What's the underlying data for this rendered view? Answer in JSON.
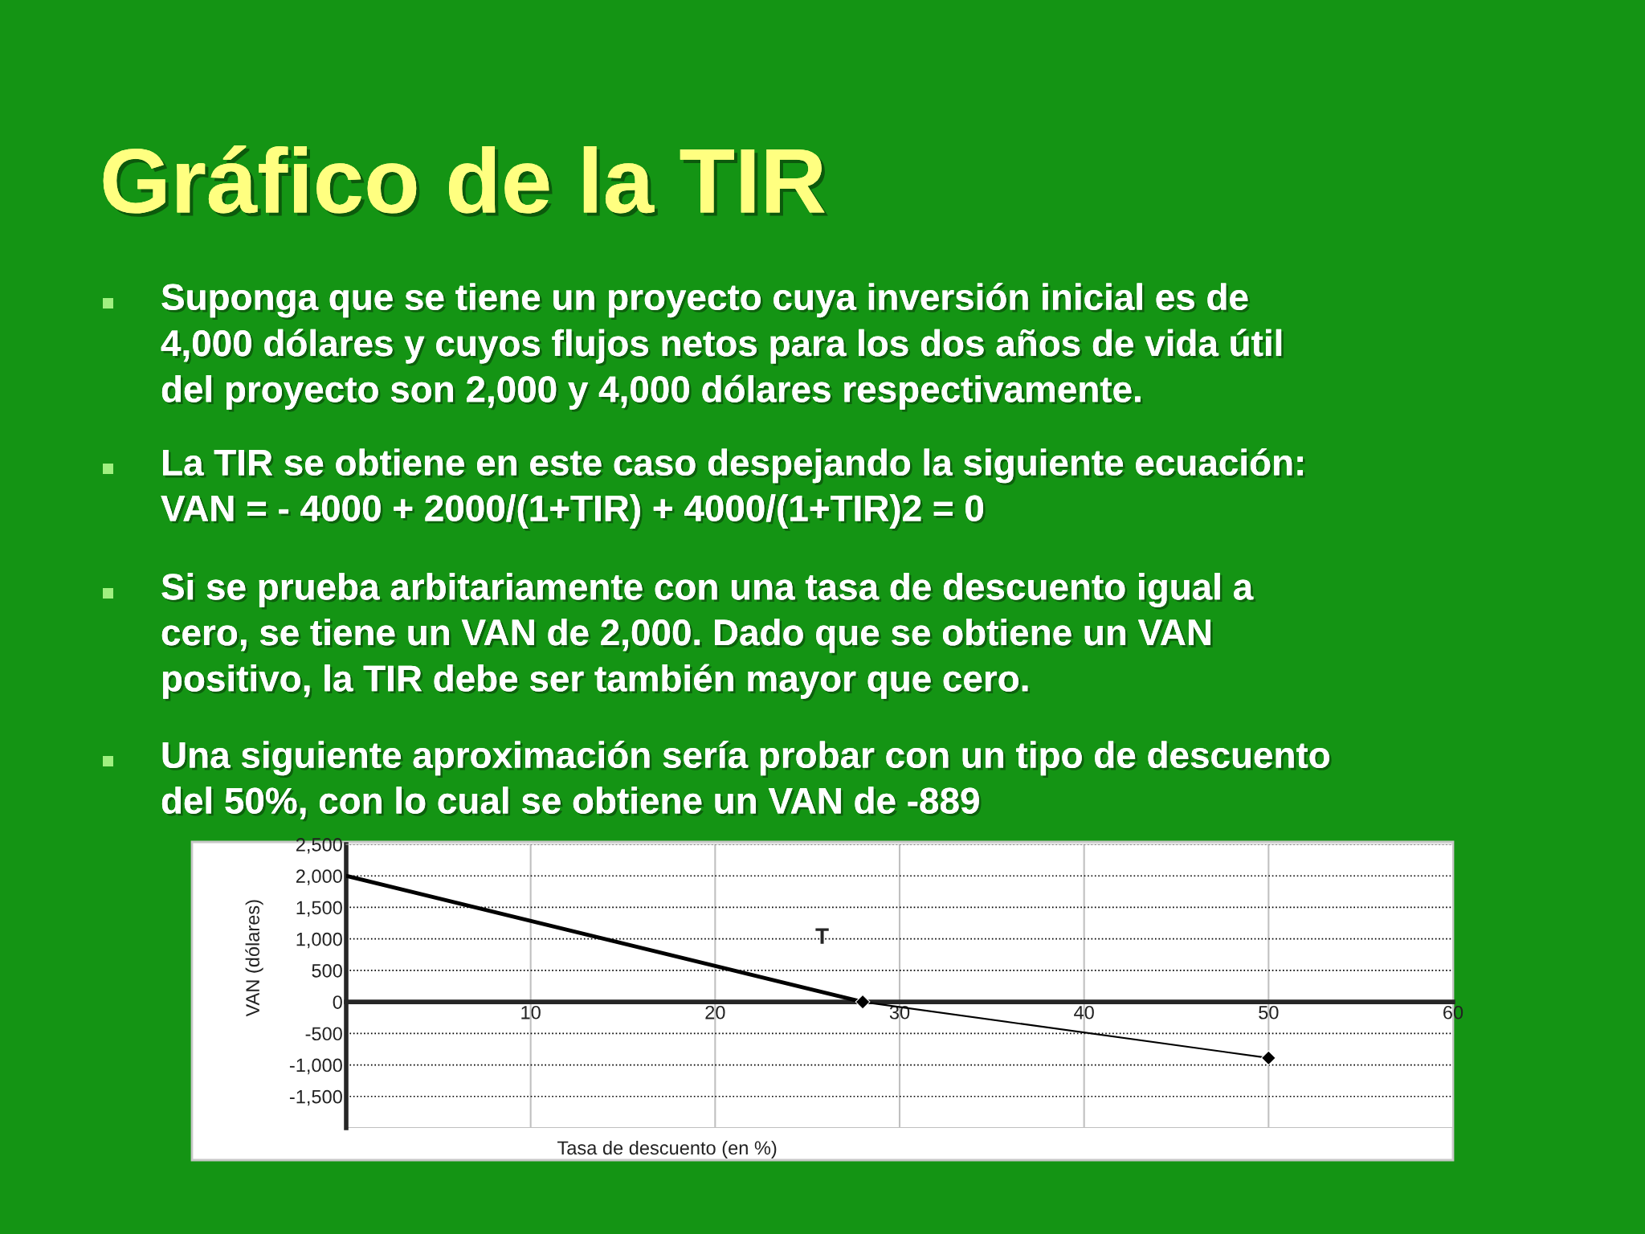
{
  "chart_data": {
    "type": "line",
    "title": "Gráfico de la TIR",
    "annotations": [
      "Suponga que se tiene un proyecto cuya inversión inicial es de\n4,000 dólares y cuyos flujos netos para los dos años de vida útil\ndel proyecto son 2,000 y 4,000 dólares respectivamente.",
      "La TIR se obtiene en este caso despejando la siguiente ecuación:\nVAN = - 4000 + 2000/(1+TIR) + 4000/(1+TIR)2 = 0",
      "Si se prueba arbitariamente con una tasa de descuento igual a\ncero, se tiene un VAN de 2,000. Dado que se obtiene un VAN\npositivo, la TIR debe ser también mayor que cero.",
      "Una siguiente aproximación sería probar con un tipo de descuento\ndel 50%, con lo cual se obtiene un VAN de -889",
      "T"
    ],
    "xlabel": "Tasa de descuento (en %)",
    "ylabel": "VAN (dólares)",
    "series": [
      {
        "color": "#000000",
        "x": [
          0,
          28
        ],
        "values": [
          2000,
          0
        ]
      },
      {
        "color": "#000000",
        "x": [
          28,
          50
        ],
        "values": [
          0,
          -889
        ],
        "marker": "diamond"
      }
    ],
    "xlim": [
      0,
      60
    ],
    "xticks": [
      10,
      20,
      30,
      40,
      50,
      60
    ],
    "ylim": [
      -2000,
      2500
    ],
    "yticks": [
      {
        "value": 2500,
        "label": "2,500"
      },
      {
        "value": 2000,
        "label": "2,000"
      },
      {
        "value": 1500,
        "label": "1,500"
      },
      {
        "value": 1000,
        "label": "1,000"
      },
      500,
      0,
      -500,
      {
        "value": -1000,
        "label": "-1,000"
      },
      {
        "value": -1500,
        "label": "-1,500"
      }
    ],
    "grid": true,
    "legend": false
  }
}
